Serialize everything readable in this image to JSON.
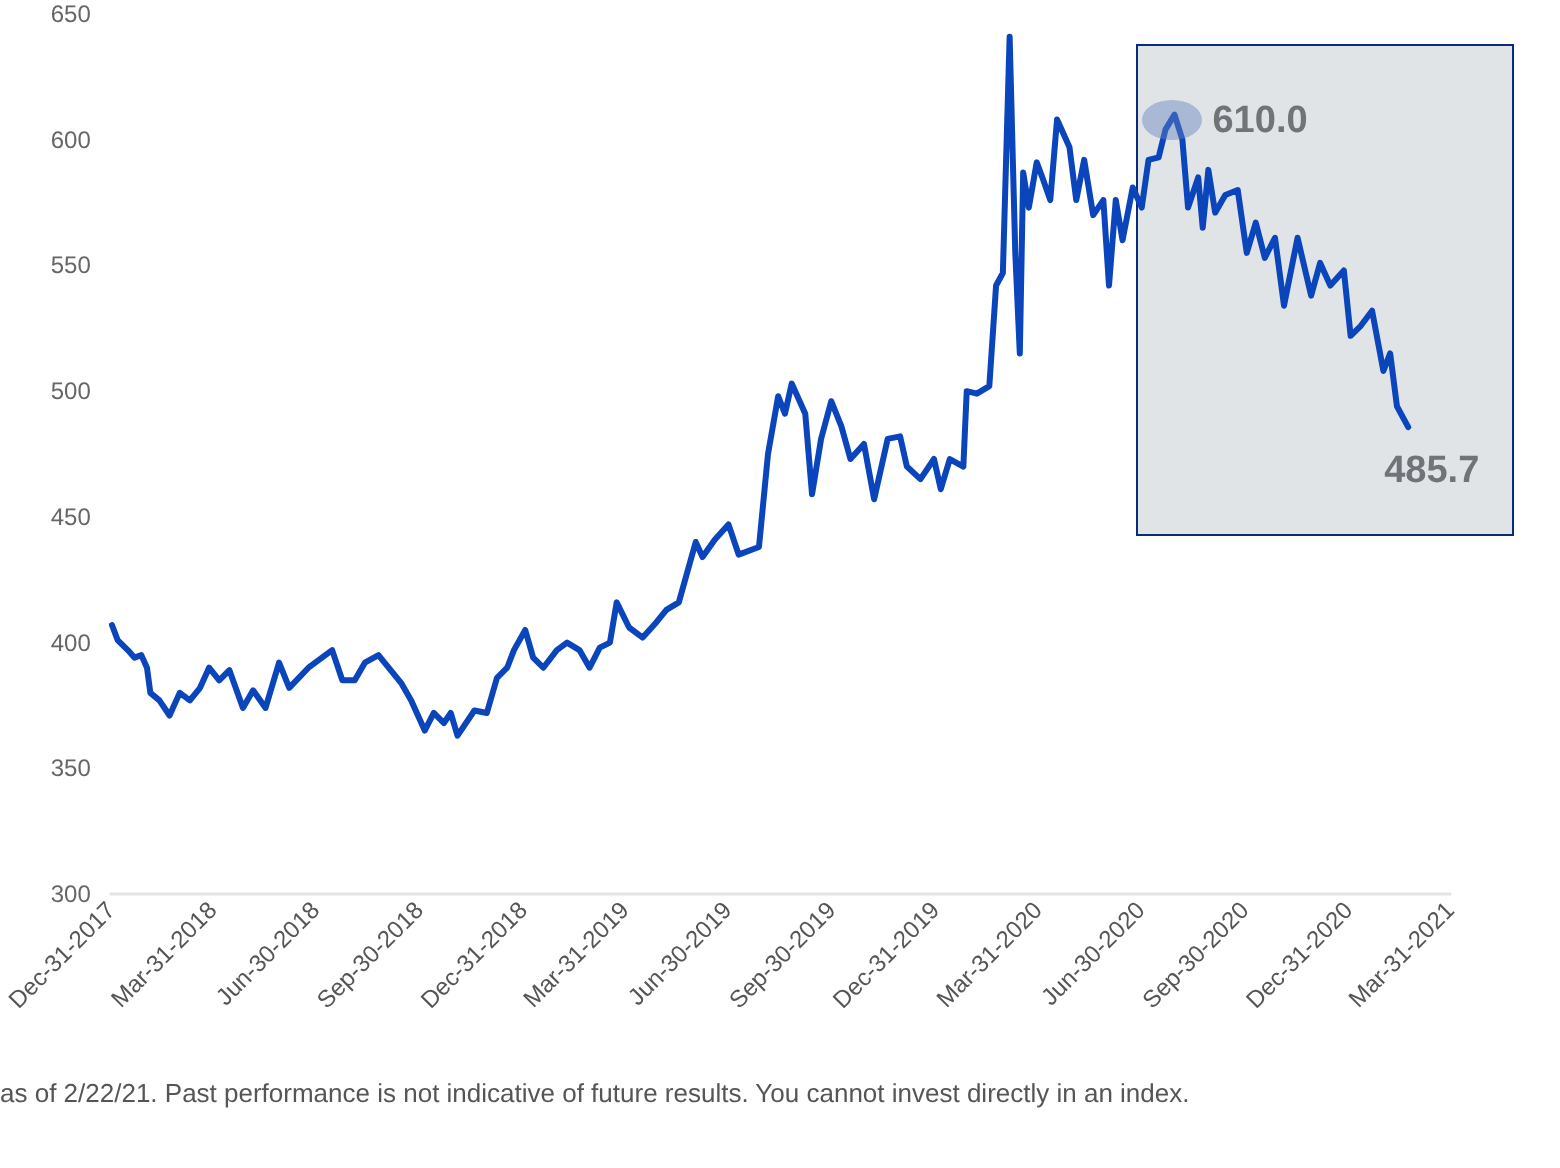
{
  "chart_data": {
    "type": "line",
    "x": [
      "2018-01-01",
      "2018-01-06",
      "2018-01-15",
      "2018-01-21",
      "2018-01-27",
      "2018-02-01",
      "2018-02-04",
      "2018-02-12",
      "2018-02-21",
      "2018-03-02",
      "2018-03-11",
      "2018-03-20",
      "2018-03-28",
      "2018-04-06",
      "2018-04-15",
      "2018-04-27",
      "2018-05-06",
      "2018-05-17",
      "2018-05-29",
      "2018-06-07",
      "2018-06-24",
      "2018-07-06",
      "2018-07-15",
      "2018-07-24",
      "2018-08-04",
      "2018-08-13",
      "2018-08-25",
      "2018-09-03",
      "2018-09-14",
      "2018-09-23",
      "2018-10-05",
      "2018-10-13",
      "2018-10-22",
      "2018-10-28",
      "2018-11-03",
      "2018-11-18",
      "2018-11-29",
      "2018-12-08",
      "2018-12-17",
      "2018-12-23",
      "2019-01-02",
      "2019-01-09",
      "2019-01-18",
      "2019-01-30",
      "2019-02-08",
      "2019-02-19",
      "2019-02-28",
      "2019-03-09",
      "2019-03-18",
      "2019-03-24",
      "2019-04-04",
      "2019-04-16",
      "2019-04-28",
      "2019-05-07",
      "2019-05-18",
      "2019-06-02",
      "2019-06-08",
      "2019-06-19",
      "2019-07-01",
      "2019-07-10",
      "2019-07-28",
      "2019-08-05",
      "2019-08-14",
      "2019-08-20",
      "2019-08-26",
      "2019-09-07",
      "2019-09-13",
      "2019-09-21",
      "2019-09-30",
      "2019-10-09",
      "2019-10-17",
      "2019-10-29",
      "2019-11-07",
      "2019-11-19",
      "2019-11-30",
      "2019-12-06",
      "2019-12-18",
      "2019-12-30",
      "2020-01-05",
      "2020-01-13",
      "2020-01-25",
      "2020-01-28",
      "2020-02-06",
      "2020-02-17",
      "2020-02-23",
      "2020-02-29",
      "2020-03-06",
      "2020-03-09",
      "2020-03-11",
      "2020-03-15",
      "2020-03-18",
      "2020-03-23",
      "2020-03-30",
      "2020-04-04",
      "2020-04-11",
      "2020-04-17",
      "2020-04-28",
      "2020-05-04",
      "2020-05-11",
      "2020-05-19",
      "2020-05-28",
      "2020-06-02",
      "2020-06-08",
      "2020-06-14",
      "2020-06-23",
      "2020-07-01",
      "2020-07-07",
      "2020-07-16",
      "2020-07-22",
      "2020-07-30",
      "2020-08-06",
      "2020-08-11",
      "2020-08-20",
      "2020-08-24",
      "2020-08-29",
      "2020-09-04",
      "2020-09-13",
      "2020-09-24",
      "2020-10-02",
      "2020-10-10",
      "2020-10-18",
      "2020-10-27",
      "2020-11-04",
      "2020-11-16",
      "2020-11-28",
      "2020-12-06",
      "2020-12-15",
      "2020-12-27",
      "2021-01-02",
      "2021-01-11",
      "2021-01-21",
      "2021-01-31",
      "2021-02-06",
      "2021-02-12",
      "2021-02-22"
    ],
    "series": [
      {
        "color": "#0a45bb",
        "values": [
          407,
          401,
          397,
          394,
          395,
          390,
          380,
          377,
          371,
          380,
          377,
          382,
          390,
          385,
          389,
          374,
          381,
          374,
          392,
          382,
          390,
          394,
          397,
          385,
          385,
          392,
          395,
          390,
          384,
          377,
          365,
          372,
          368,
          372,
          363,
          373,
          372,
          386,
          390,
          397,
          405,
          394,
          390,
          397,
          400,
          397,
          390,
          398,
          400,
          416,
          406,
          402,
          408,
          413,
          416,
          440,
          434,
          441,
          447,
          435,
          438,
          475,
          498,
          491,
          503,
          491,
          459,
          481,
          496,
          486,
          473,
          479,
          457,
          481,
          482,
          470,
          465,
          473,
          461,
          473,
          470,
          500,
          499,
          502,
          542,
          547,
          641,
          589,
          555,
          515,
          587,
          573,
          591,
          585,
          576,
          608,
          597,
          576,
          592,
          570,
          576,
          542,
          576,
          560,
          581,
          573,
          592,
          593,
          604,
          610,
          600,
          573,
          585,
          565,
          588,
          571,
          578,
          580,
          555,
          567,
          553,
          561,
          534,
          561,
          538,
          551,
          542,
          548,
          522,
          526,
          532,
          508,
          515,
          494,
          485.7
        ]
      }
    ],
    "xlim": [
      "2017-12-31",
      "2021-03-31"
    ],
    "xticks": [
      {
        "value": "2017-12-31",
        "label": "Dec-31-2017"
      },
      {
        "value": "2018-03-31",
        "label": "Mar-31-2018"
      },
      {
        "value": "2018-06-30",
        "label": "Jun-30-2018"
      },
      {
        "value": "2018-09-30",
        "label": "Sep-30-2018"
      },
      {
        "value": "2018-12-31",
        "label": "Dec-31-2018"
      },
      {
        "value": "2019-03-31",
        "label": "Mar-31-2019"
      },
      {
        "value": "2019-06-30",
        "label": "Jun-30-2019"
      },
      {
        "value": "2019-09-30",
        "label": "Sep-30-2019"
      },
      {
        "value": "2019-12-31",
        "label": "Dec-31-2019"
      },
      {
        "value": "2020-03-31",
        "label": "Mar-31-2020"
      },
      {
        "value": "2020-06-30",
        "label": "Jun-30-2020"
      },
      {
        "value": "2020-09-30",
        "label": "Sep-30-2020"
      },
      {
        "value": "2020-12-31",
        "label": "Dec-31-2020"
      },
      {
        "value": "2021-03-31",
        "label": "Mar-31-2021"
      }
    ],
    "ylim": [
      300,
      650
    ],
    "yticks": [
      300,
      350,
      400,
      450,
      500,
      550,
      600,
      650
    ],
    "grid": false,
    "marker": "none",
    "line_style": "solid",
    "annotations": [
      {
        "text": "610.0",
        "x": "2020-07-30",
        "y": 610
      },
      {
        "text": "485.7",
        "x": "2021-02-22",
        "y": 485.7
      },
      "as of 2/22/21. Past performance is not indicative of future results. You cannot invest directly in an index."
    ]
  }
}
